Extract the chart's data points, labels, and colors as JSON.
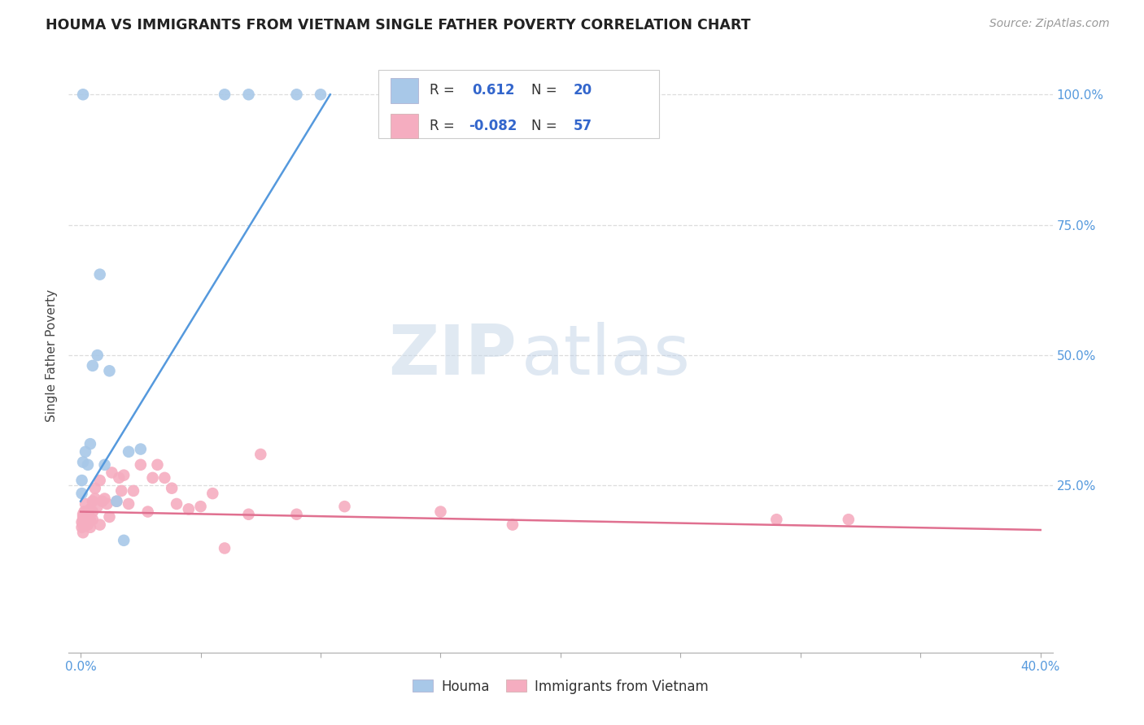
{
  "title": "HOUMA VS IMMIGRANTS FROM VIETNAM SINGLE FATHER POVERTY CORRELATION CHART",
  "source": "Source: ZipAtlas.com",
  "ylabel": "Single Father Poverty",
  "houma_R": 0.612,
  "houma_N": 20,
  "vietnam_R": -0.082,
  "vietnam_N": 57,
  "houma_color": "#a8c8e8",
  "houma_line_color": "#5599dd",
  "vietnam_color": "#f5adc0",
  "vietnam_line_color": "#e07090",
  "watermark_zip": "ZIP",
  "watermark_atlas": "atlas",
  "houma_x": [
    0.0005,
    0.0005,
    0.001,
    0.001,
    0.002,
    0.003,
    0.004,
    0.005,
    0.007,
    0.008,
    0.01,
    0.012,
    0.015,
    0.018,
    0.02,
    0.025,
    0.06,
    0.07,
    0.09,
    0.1
  ],
  "houma_y": [
    0.235,
    0.26,
    0.295,
    1.0,
    0.315,
    0.29,
    0.33,
    0.48,
    0.5,
    0.655,
    0.29,
    0.47,
    0.22,
    0.145,
    0.315,
    0.32,
    1.0,
    1.0,
    1.0,
    1.0
  ],
  "houma_line_x": [
    0.0,
    0.104
  ],
  "houma_line_y": [
    0.22,
    1.0
  ],
  "vietnam_x": [
    0.0005,
    0.0005,
    0.001,
    0.001,
    0.001,
    0.001,
    0.001,
    0.0015,
    0.002,
    0.002,
    0.002,
    0.002,
    0.003,
    0.003,
    0.003,
    0.003,
    0.004,
    0.004,
    0.004,
    0.005,
    0.005,
    0.005,
    0.006,
    0.006,
    0.007,
    0.008,
    0.008,
    0.009,
    0.01,
    0.011,
    0.012,
    0.013,
    0.015,
    0.016,
    0.017,
    0.018,
    0.02,
    0.022,
    0.025,
    0.028,
    0.03,
    0.032,
    0.035,
    0.038,
    0.04,
    0.045,
    0.05,
    0.055,
    0.06,
    0.07,
    0.075,
    0.09,
    0.11,
    0.15,
    0.18,
    0.29,
    0.32
  ],
  "vietnam_y": [
    0.18,
    0.17,
    0.195,
    0.185,
    0.175,
    0.16,
    0.19,
    0.2,
    0.2,
    0.18,
    0.195,
    0.215,
    0.19,
    0.175,
    0.185,
    0.195,
    0.185,
    0.205,
    0.17,
    0.2,
    0.22,
    0.185,
    0.245,
    0.225,
    0.21,
    0.175,
    0.26,
    0.22,
    0.225,
    0.215,
    0.19,
    0.275,
    0.22,
    0.265,
    0.24,
    0.27,
    0.215,
    0.24,
    0.29,
    0.2,
    0.265,
    0.29,
    0.265,
    0.245,
    0.215,
    0.205,
    0.21,
    0.235,
    0.13,
    0.195,
    0.31,
    0.195,
    0.21,
    0.2,
    0.175,
    0.185,
    0.185
  ],
  "vietnam_line_x": [
    0.0,
    0.4
  ],
  "vietnam_line_y": [
    0.2,
    0.165
  ],
  "xmin": 0.0,
  "xmax": 0.4,
  "ymin": -0.07,
  "ymax": 1.07,
  "right_yticks": [
    1.0,
    0.75,
    0.5,
    0.25
  ],
  "right_yticklabels": [
    "100.0%",
    "75.0%",
    "50.0%",
    "25.0%"
  ],
  "tick_color": "#5599dd",
  "grid_color": "#dddddd",
  "legend_text_color": "#3366cc",
  "legend_R_label_color": "#333333"
}
